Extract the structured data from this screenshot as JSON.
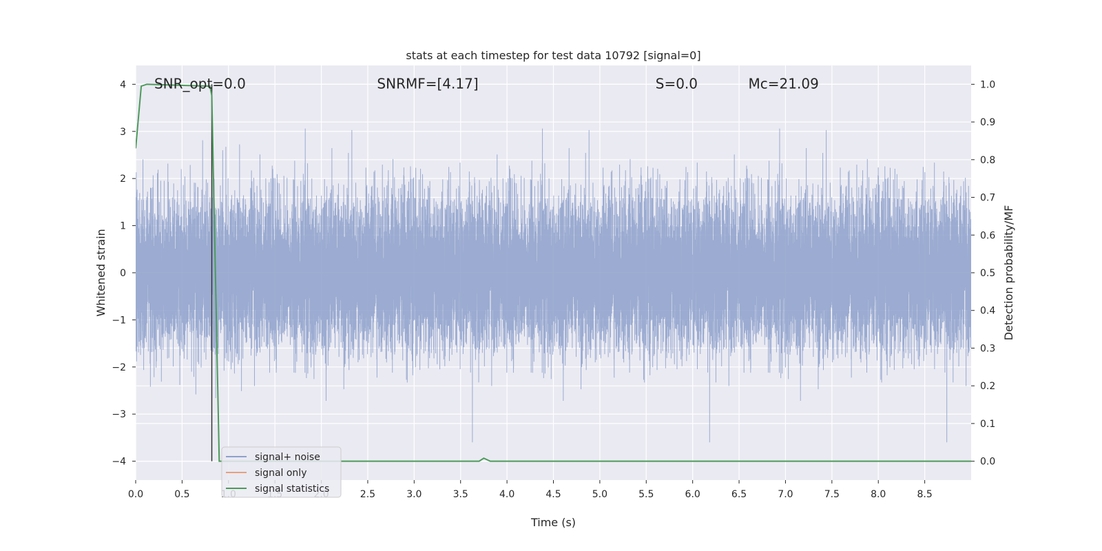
{
  "chart_data": {
    "type": "line",
    "title": "stats at each timestep for test data 10792 [signal=0]",
    "xlabel": "Time (s)",
    "ylabel": "Whitened strain",
    "y2label": "Detection probability/MF",
    "xlim": [
      0,
      9.0
    ],
    "ylim": [
      -4.4,
      4.4
    ],
    "y2lim": [
      -0.05,
      1.05
    ],
    "xticks": [
      0.0,
      0.5,
      1.0,
      1.5,
      2.0,
      2.5,
      3.0,
      3.5,
      4.0,
      4.5,
      5.0,
      5.5,
      6.0,
      6.5,
      7.0,
      7.5,
      8.0,
      8.5
    ],
    "xtick_labels": [
      "0.0",
      "0.5",
      "1.0",
      "1.5",
      "2.0",
      "2.5",
      "3.0",
      "3.5",
      "4.0",
      "4.5",
      "5.0",
      "5.5",
      "6.0",
      "6.5",
      "7.0",
      "7.5",
      "8.0",
      "8.5"
    ],
    "yticks": [
      -4,
      -3,
      -2,
      -1,
      0,
      1,
      2,
      3,
      4
    ],
    "ytick_labels": [
      "−4",
      "−3",
      "−2",
      "−1",
      "0",
      "1",
      "2",
      "3",
      "4"
    ],
    "y2ticks": [
      0.0,
      0.1,
      0.2,
      0.3,
      0.4,
      0.5,
      0.6,
      0.7,
      0.8,
      0.9,
      1.0
    ],
    "y2tick_labels": [
      "0.0",
      "0.1",
      "0.2",
      "0.3",
      "0.4",
      "0.5",
      "0.6",
      "0.7",
      "0.8",
      "0.9",
      "1.0"
    ],
    "grid": true,
    "legend_position": "lower-left",
    "annotations": [
      {
        "key": "snr-opt",
        "text": "SNR_opt=0.0",
        "x": 0.2,
        "y": 4.0
      },
      {
        "key": "snr-mf",
        "text": "SNRMF=[4.17]",
        "x": 2.6,
        "y": 4.0
      },
      {
        "key": "s",
        "text": "S=0.0",
        "x": 5.6,
        "y": 4.0
      },
      {
        "key": "mc",
        "text": "Mc=21.09",
        "x": 6.6,
        "y": 4.0
      }
    ],
    "vline": {
      "x": 0.82,
      "y_range": [
        -4.0,
        4.0
      ],
      "color": "#333333"
    },
    "series": [
      {
        "name": "signal+ noise",
        "color": "#8da0cb",
        "kind": "noise",
        "duration": 9.0,
        "sample_rate": 2048,
        "std": 0.8,
        "range": [
          -3.6,
          4.0
        ]
      },
      {
        "name": "signal only",
        "color": "#e5a07e",
        "kind": "flat",
        "values": []
      },
      {
        "name": "signal statistics",
        "color": "#4c9a5a",
        "axis": "right",
        "x": [
          0.0,
          0.06,
          0.12,
          0.8,
          0.82,
          0.9,
          3.7,
          3.75,
          3.82,
          9.0
        ],
        "values": [
          0.83,
          0.995,
          1.0,
          0.995,
          0.97,
          0.0,
          0.0,
          0.008,
          0.0,
          0.0
        ]
      }
    ],
    "colors": {
      "axes_bg": "#eaeaf2",
      "grid": "#ffffff",
      "noise": "#8da0cb",
      "signal_only": "#e5a07e",
      "statistics": "#4c9a5a"
    }
  }
}
